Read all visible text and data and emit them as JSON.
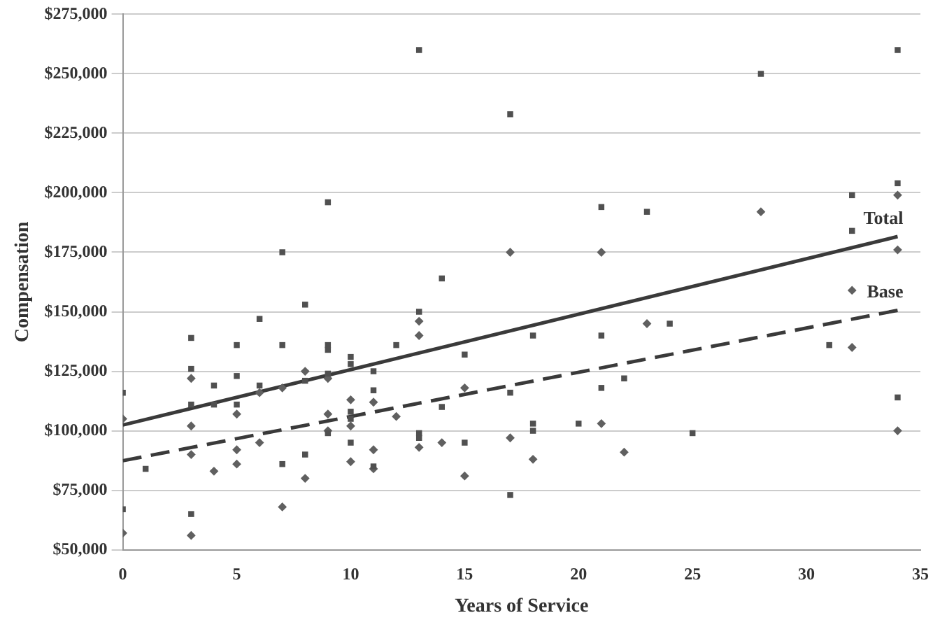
{
  "chart_data": {
    "type": "scatter",
    "xlabel": "Years of Service",
    "ylabel": "Compensation",
    "xlim": [
      0,
      35
    ],
    "xticks": [
      0,
      5,
      10,
      15,
      20,
      25,
      30,
      35
    ],
    "ylim": [
      50000,
      275000
    ],
    "yticks": [
      {
        "value": 50000,
        "label": "$50,000"
      },
      {
        "value": 75000,
        "label": "$75,000"
      },
      {
        "value": 100000,
        "label": "$100,000"
      },
      {
        "value": 125000,
        "label": "$125,000"
      },
      {
        "value": 150000,
        "label": "$150,000"
      },
      {
        "value": 175000,
        "label": "$175,000"
      },
      {
        "value": 200000,
        "label": "$200,000"
      },
      {
        "value": 225000,
        "label": "$225,000"
      },
      {
        "value": 250000,
        "label": "$250,000"
      },
      {
        "value": 275000,
        "label": "$275,000"
      }
    ],
    "grid": "y",
    "legend": false,
    "series": [
      {
        "marker": "square",
        "color": "#505050",
        "x": [
          0,
          0,
          1,
          3,
          3,
          3,
          3,
          4,
          4,
          5,
          5,
          5,
          6,
          6,
          7,
          7,
          7,
          8,
          8,
          8,
          9,
          9,
          9,
          9,
          9,
          10,
          10,
          10,
          10,
          10,
          11,
          11,
          11,
          12,
          13,
          13,
          13,
          13,
          14,
          14,
          15,
          15,
          17,
          17,
          17,
          18,
          18,
          18,
          20,
          21,
          21,
          21,
          22,
          23,
          24,
          25,
          28,
          31,
          32,
          32,
          34,
          34,
          34
        ],
        "values": [
          116000,
          67000,
          84000,
          139000,
          126000,
          111000,
          65000,
          119000,
          111000,
          136000,
          123000,
          111000,
          147000,
          119000,
          175000,
          136000,
          86000,
          153000,
          121000,
          90000,
          196000,
          136000,
          134000,
          124000,
          99000,
          131000,
          128000,
          108000,
          105000,
          95000,
          125000,
          117000,
          85000,
          136000,
          260000,
          150000,
          99000,
          97000,
          164000,
          110000,
          132000,
          95000,
          233000,
          116000,
          73000,
          140000,
          103000,
          100000,
          103000,
          194000,
          140000,
          118000,
          122000,
          192000,
          145000,
          99000,
          250000,
          136000,
          199000,
          184000,
          260000,
          204000,
          114000
        ]
      },
      {
        "marker": "diamond",
        "color": "#606060",
        "x": [
          0,
          0,
          3,
          3,
          3,
          3,
          4,
          5,
          5,
          5,
          6,
          6,
          7,
          7,
          8,
          8,
          9,
          9,
          9,
          10,
          10,
          10,
          11,
          11,
          11,
          12,
          13,
          13,
          13,
          14,
          15,
          15,
          17,
          17,
          18,
          21,
          21,
          22,
          23,
          28,
          32,
          32,
          34,
          34,
          34
        ],
        "values": [
          105000,
          57000,
          122000,
          102000,
          90000,
          56000,
          83000,
          107000,
          92000,
          86000,
          116000,
          95000,
          118000,
          68000,
          125000,
          80000,
          122000,
          107000,
          100000,
          113000,
          102000,
          87000,
          112000,
          92000,
          84000,
          106000,
          146000,
          140000,
          93000,
          95000,
          118000,
          81000,
          175000,
          97000,
          88000,
          175000,
          103000,
          91000,
          145000,
          192000,
          159000,
          135000,
          199000,
          176000,
          100000
        ]
      },
      {
        "type": "line",
        "name": "Total",
        "marker": "none",
        "line_style": "solid",
        "color": "#3a3a3a",
        "x": [
          0,
          34
        ],
        "values": [
          102400,
          181600
        ]
      },
      {
        "type": "line",
        "name": "Base",
        "marker": "none",
        "line_style": "dashed",
        "color": "#3a3a3a",
        "x": [
          0,
          34
        ],
        "values": [
          87400,
          150600
        ]
      }
    ]
  }
}
